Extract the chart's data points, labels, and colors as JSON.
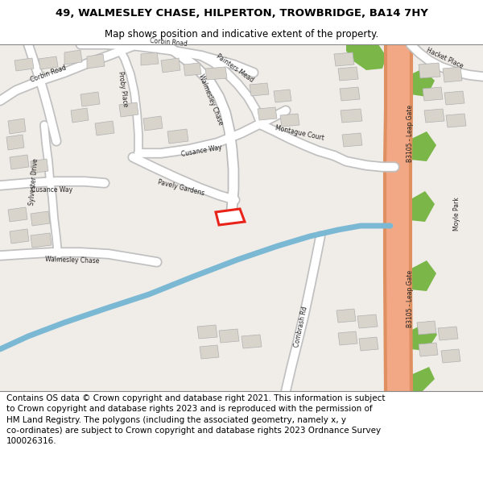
{
  "title": "49, WALMESLEY CHASE, HILPERTON, TROWBRIDGE, BA14 7HY",
  "subtitle": "Map shows position and indicative extent of the property.",
  "copyright_text": "Contains OS data © Crown copyright and database right 2021. This information is subject\nto Crown copyright and database rights 2023 and is reproduced with the permission of\nHM Land Registry. The polygons (including the associated geometry, namely x, y\nco-ordinates) are subject to Crown copyright and database rights 2023 Ordnance Survey\n100026316.",
  "map_background": "#f0ede8",
  "building_color": "#d8d4cc",
  "building_outline": "#b0b0b0",
  "green_color": "#7ab648",
  "salmon_color": "#f2a884",
  "salmon_outline": "#e09060",
  "river_color": "#7bb8d4",
  "plot_outline": "#e8231a",
  "road_color": "#ffffff",
  "road_outline": "#c8c8c8",
  "title_fontsize": 9.5,
  "subtitle_fontsize": 8.5,
  "copyright_fontsize": 7.5
}
